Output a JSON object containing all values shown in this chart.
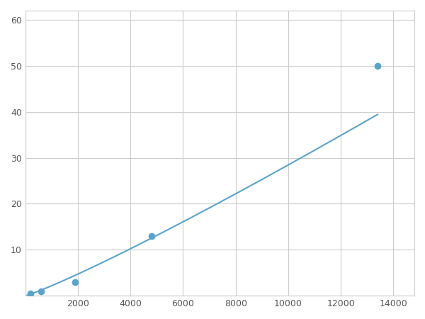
{
  "x_points": [
    200,
    600,
    1900,
    4800,
    13400
  ],
  "y_points": [
    0.5,
    1.0,
    3.0,
    13.0,
    50.0
  ],
  "line_color": "#5ba3c9",
  "marker_color": "#5ba3c9",
  "marker_size": 7,
  "line_width": 1.5,
  "xlim": [
    0,
    14800
  ],
  "ylim": [
    0,
    62
  ],
  "xticks": [
    0,
    2000,
    4000,
    6000,
    8000,
    10000,
    12000,
    14000
  ],
  "yticks": [
    0,
    10,
    20,
    30,
    40,
    50,
    60
  ],
  "grid_color": "#cccccc",
  "background_color": "#ffffff",
  "figsize": [
    6.0,
    4.5
  ],
  "dpi": 100
}
